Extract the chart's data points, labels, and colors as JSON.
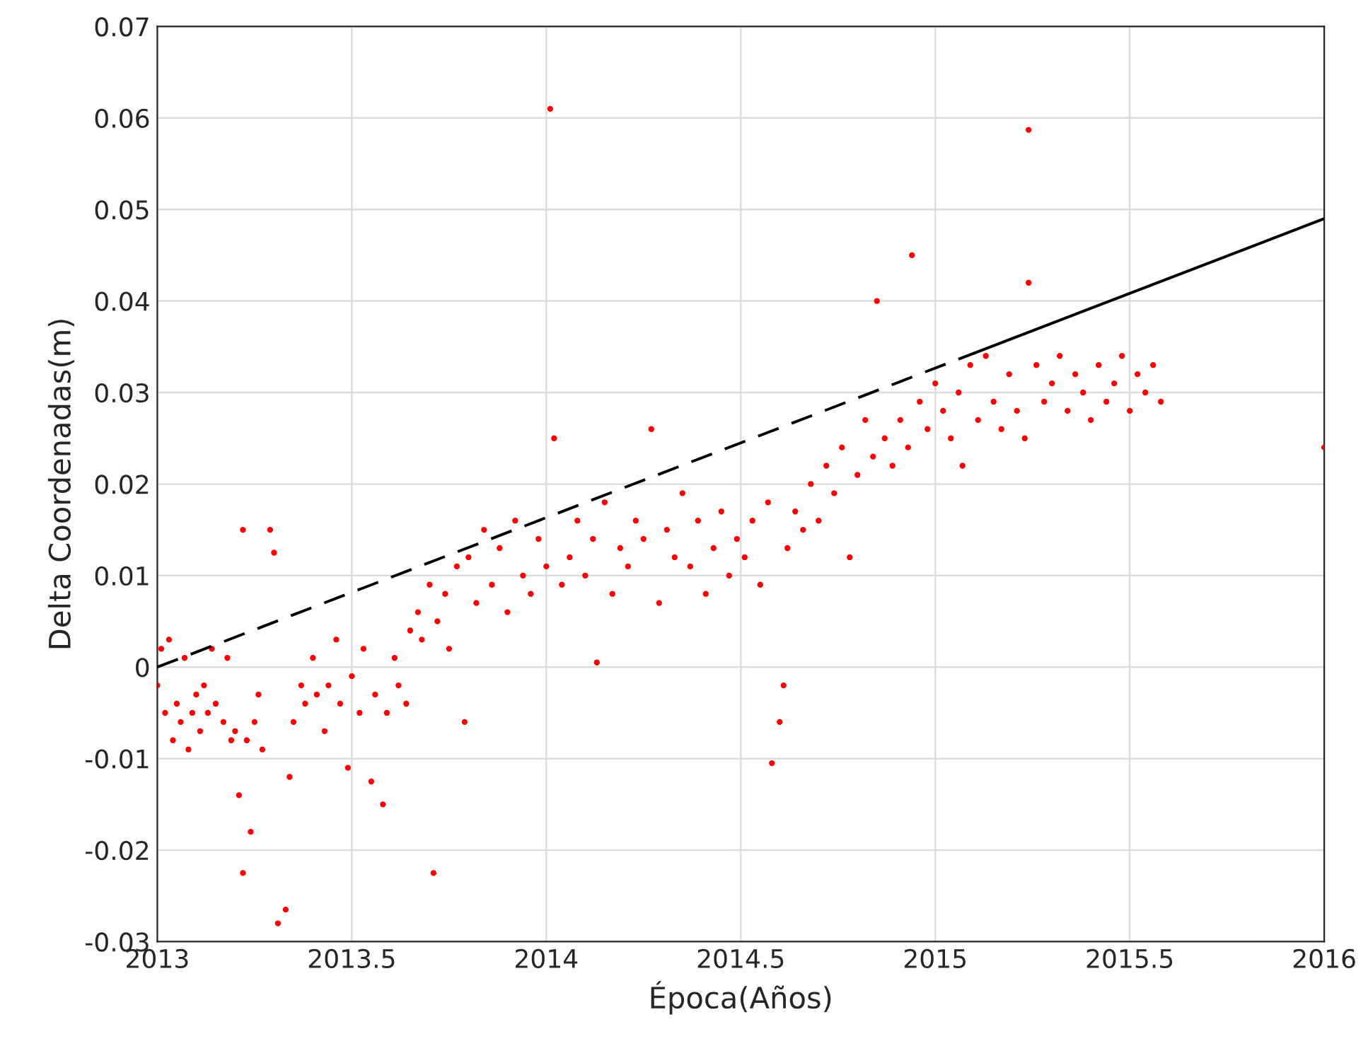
{
  "chart_data": {
    "type": "scatter",
    "xlabel": "Época(Años)",
    "ylabel": "Delta Coordenadas(m)",
    "xlim": [
      2013,
      2016
    ],
    "xticks": [
      2013,
      2013.5,
      2014,
      2014.5,
      2015,
      2015.5,
      2016
    ],
    "ylim": [
      -0.03,
      0.07
    ],
    "yticks": [
      -0.03,
      -0.02,
      -0.01,
      0,
      0.01,
      0.02,
      0.03,
      0.04,
      0.05,
      0.06,
      0.07
    ],
    "grid": true,
    "marker": "circle",
    "series": [
      {
        "color": "#ff0000",
        "x": [
          2013.0,
          2013.01,
          2013.02,
          2013.03,
          2013.04,
          2013.05,
          2013.06,
          2013.07,
          2013.08,
          2013.09,
          2013.1,
          2013.11,
          2013.12,
          2013.13,
          2013.14,
          2013.15,
          2013.17,
          2013.18,
          2013.19,
          2013.2,
          2013.21,
          2013.22,
          2013.22,
          2013.23,
          2013.24,
          2013.25,
          2013.26,
          2013.27,
          2013.29,
          2013.3,
          2013.31,
          2013.33,
          2013.34,
          2013.35,
          2013.37,
          2013.38,
          2013.4,
          2013.41,
          2013.43,
          2013.44,
          2013.46,
          2013.47,
          2013.49,
          2013.5,
          2013.52,
          2013.53,
          2013.55,
          2013.56,
          2013.58,
          2013.59,
          2013.61,
          2013.62,
          2013.64,
          2013.65,
          2013.67,
          2013.68,
          2013.7,
          2013.71,
          2013.72,
          2013.74,
          2013.75,
          2013.77,
          2013.79,
          2013.8,
          2013.82,
          2013.84,
          2013.86,
          2013.88,
          2013.9,
          2013.92,
          2013.94,
          2013.96,
          2013.98,
          2014.0,
          2014.01,
          2014.02,
          2014.04,
          2014.06,
          2014.08,
          2014.1,
          2014.12,
          2014.13,
          2014.15,
          2014.17,
          2014.19,
          2014.21,
          2014.23,
          2014.25,
          2014.27,
          2014.29,
          2014.31,
          2014.33,
          2014.35,
          2014.37,
          2014.39,
          2014.41,
          2014.43,
          2014.45,
          2014.47,
          2014.49,
          2014.51,
          2014.53,
          2014.55,
          2014.57,
          2014.58,
          2014.6,
          2014.61,
          2014.62,
          2014.64,
          2014.66,
          2014.68,
          2014.7,
          2014.72,
          2014.74,
          2014.76,
          2014.78,
          2014.8,
          2014.82,
          2014.84,
          2014.85,
          2014.87,
          2014.89,
          2014.91,
          2014.93,
          2014.94,
          2014.96,
          2014.98,
          2015.0,
          2015.02,
          2015.04,
          2015.06,
          2015.07,
          2015.09,
          2015.11,
          2015.13,
          2015.15,
          2015.17,
          2015.19,
          2015.21,
          2015.23,
          2015.24,
          2015.24,
          2015.26,
          2015.28,
          2015.3,
          2015.32,
          2015.34,
          2015.36,
          2015.38,
          2015.4,
          2015.42,
          2015.44,
          2015.46,
          2015.48,
          2015.5,
          2015.52,
          2015.54,
          2015.56,
          2015.58,
          2016.0
        ],
        "values": [
          -0.002,
          0.002,
          -0.005,
          0.003,
          -0.008,
          -0.004,
          -0.006,
          0.001,
          -0.009,
          -0.005,
          -0.003,
          -0.007,
          -0.002,
          -0.005,
          0.002,
          -0.004,
          -0.006,
          0.001,
          -0.008,
          -0.007,
          -0.014,
          0.015,
          -0.0225,
          -0.008,
          -0.018,
          -0.006,
          -0.003,
          -0.009,
          0.015,
          0.0125,
          -0.028,
          -0.0265,
          -0.012,
          -0.006,
          -0.002,
          -0.004,
          0.001,
          -0.003,
          -0.007,
          -0.002,
          0.003,
          -0.004,
          -0.011,
          -0.001,
          -0.005,
          0.002,
          -0.0125,
          -0.003,
          -0.015,
          -0.005,
          0.001,
          -0.002,
          -0.004,
          0.004,
          0.006,
          0.003,
          0.009,
          -0.0225,
          0.005,
          0.008,
          0.002,
          0.011,
          -0.006,
          0.012,
          0.007,
          0.015,
          0.009,
          0.013,
          0.006,
          0.016,
          0.01,
          0.008,
          0.014,
          0.011,
          0.061,
          0.025,
          0.009,
          0.012,
          0.016,
          0.01,
          0.014,
          0.0005,
          0.018,
          0.008,
          0.013,
          0.011,
          0.016,
          0.014,
          0.026,
          0.007,
          0.015,
          0.012,
          0.019,
          0.011,
          0.016,
          0.008,
          0.013,
          0.017,
          0.01,
          0.014,
          0.012,
          0.016,
          0.009,
          0.018,
          -0.0105,
          -0.006,
          -0.002,
          0.013,
          0.017,
          0.015,
          0.02,
          0.016,
          0.022,
          0.019,
          0.024,
          0.012,
          0.021,
          0.027,
          0.023,
          0.04,
          0.025,
          0.022,
          0.027,
          0.024,
          0.045,
          0.029,
          0.026,
          0.031,
          0.028,
          0.025,
          0.03,
          0.022,
          0.033,
          0.027,
          0.034,
          0.029,
          0.026,
          0.032,
          0.028,
          0.025,
          0.0587,
          0.042,
          0.033,
          0.029,
          0.031,
          0.034,
          0.028,
          0.032,
          0.03,
          0.027,
          0.033,
          0.029,
          0.031,
          0.034,
          0.028,
          0.032,
          0.03,
          0.033,
          0.029,
          0.024
        ]
      },
      {
        "type": "line",
        "color": "#000000",
        "line_style": "dashed",
        "marker": "none",
        "x": [
          2013.0,
          2015.1
        ],
        "values": [
          0.0,
          0.0343
        ]
      },
      {
        "type": "line",
        "color": "#000000",
        "line_style": "solid",
        "marker": "none",
        "x": [
          2015.1,
          2016.0
        ],
        "values": [
          0.0343,
          0.049
        ]
      }
    ]
  }
}
